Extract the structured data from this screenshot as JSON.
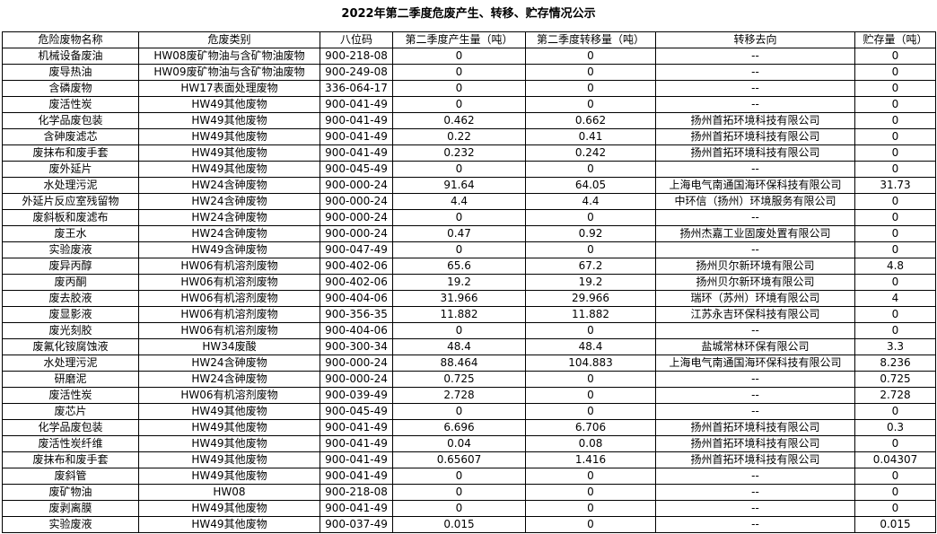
{
  "title": "2022年第二季度危废产生、转移、贮存情况公示",
  "table": {
    "headers": [
      "危险废物名称",
      "危废类别",
      "八位码",
      "第二季度产生量（吨）",
      "第二季度转移量（吨）",
      "转移去向",
      "贮存量（吨）"
    ],
    "rows": [
      [
        "机械设备废油",
        "HW08废矿物油与含矿物油废物",
        "900-218-08",
        "0",
        "0",
        "--",
        "0"
      ],
      [
        "废导热油",
        "HW09废矿物油与含矿物油废物",
        "900-249-08",
        "0",
        "0",
        "--",
        "0"
      ],
      [
        "含磷废物",
        "HW17表面处理废物",
        "336-064-17",
        "0",
        "0",
        "--",
        "0"
      ],
      [
        "废活性炭",
        "HW49其他废物",
        "900-041-49",
        "0",
        "0",
        "--",
        "0"
      ],
      [
        "化学品废包装",
        "HW49其他废物",
        "900-041-49",
        "0.462",
        "0.662",
        "扬州首拓环境科技有限公司",
        "0"
      ],
      [
        "含砷废滤芯",
        "HW49其他废物",
        "900-041-49",
        "0.22",
        "0.41",
        "扬州首拓环境科技有限公司",
        "0"
      ],
      [
        "废抹布和废手套",
        "HW49其他废物",
        "900-041-49",
        "0.232",
        "0.242",
        "扬州首拓环境科技有限公司",
        "0"
      ],
      [
        "废外延片",
        "HW49其他废物",
        "900-045-49",
        "0",
        "0",
        "--",
        "0"
      ],
      [
        "水处理污泥",
        "HW24含砷废物",
        "900-000-24",
        "91.64",
        "64.05",
        "上海电气南通国海环保科技有限公司",
        "31.73"
      ],
      [
        "外延片反应室残留物",
        "HW24含砷废物",
        "900-000-24",
        "4.4",
        "4.4",
        "中环信（扬州）环境服务有限公司",
        "0"
      ],
      [
        "废斜板和废滤布",
        "HW24含砷废物",
        "900-000-24",
        "0",
        "0",
        "--",
        "0"
      ],
      [
        "废王水",
        "HW24含砷废物",
        "900-000-24",
        "0.47",
        "0.92",
        "扬州杰嘉工业固废处置有限公司",
        "0"
      ],
      [
        "实验废液",
        "HW49含砷废物",
        "900-047-49",
        "0",
        "0",
        "--",
        "0"
      ],
      [
        "废异丙醇",
        "HW06有机溶剂废物",
        "900-402-06",
        "65.6",
        "67.2",
        "扬州贝尔新环境有限公司",
        "4.8"
      ],
      [
        "废丙酮",
        "HW06有机溶剂废物",
        "900-402-06",
        "19.2",
        "19.2",
        "扬州贝尔新环境有限公司",
        "0"
      ],
      [
        "废去胶液",
        "HW06有机溶剂废物",
        "900-404-06",
        "31.966",
        "29.966",
        "瑞环（苏州）环境有限公司",
        "4"
      ],
      [
        "废显影液",
        "HW06有机溶剂废物",
        "900-356-35",
        "11.882",
        "11.882",
        "江苏永吉环保科技有限公司",
        "0"
      ],
      [
        "废光刻胶",
        "HW06有机溶剂废物",
        "900-404-06",
        "0",
        "0",
        "--",
        "0"
      ],
      [
        "废氟化铵腐蚀液",
        "HW34废酸",
        "900-300-34",
        "48.4",
        "48.4",
        "盐城常林环保有限公司",
        "3.3"
      ],
      [
        "水处理污泥",
        "HW24含砷废物",
        "900-000-24",
        "88.464",
        "104.883",
        "上海电气南通国海环保科技有限公司",
        "8.236"
      ],
      [
        "研磨泥",
        "HW24含砷废物",
        "900-000-24",
        "0.725",
        "0",
        "--",
        "0.725"
      ],
      [
        "废活性炭",
        "HW06有机溶剂废物",
        "900-039-49",
        "2.728",
        "0",
        "--",
        "2.728"
      ],
      [
        "废芯片",
        "HW49其他废物",
        "900-045-49",
        "0",
        "0",
        "--",
        "0"
      ],
      [
        "化学品废包装",
        "HW49其他废物",
        "900-041-49",
        "6.696",
        "6.706",
        "扬州首拓环境科技有限公司",
        "0.3"
      ],
      [
        "废活性炭纤维",
        "HW49其他废物",
        "900-041-49",
        "0.04",
        "0.08",
        "扬州首拓环境科技有限公司",
        "0"
      ],
      [
        "废抹布和废手套",
        "HW49其他废物",
        "900-041-49",
        "0.65607",
        "1.416",
        "扬州首拓环境科技有限公司",
        "0.04307"
      ],
      [
        "废斜管",
        "HW49其他废物",
        "900-041-49",
        "0",
        "0",
        "--",
        "0"
      ],
      [
        "废矿物油",
        "HW08",
        "900-218-08",
        "0",
        "0",
        "--",
        "0"
      ],
      [
        "废剥离膜",
        "HW49其他废物",
        "900-041-49",
        "0",
        "0",
        "--",
        "0"
      ],
      [
        "实验废液",
        "HW49其他废物",
        "900-037-49",
        "0.015",
        "0",
        "--",
        "0.015"
      ]
    ]
  }
}
